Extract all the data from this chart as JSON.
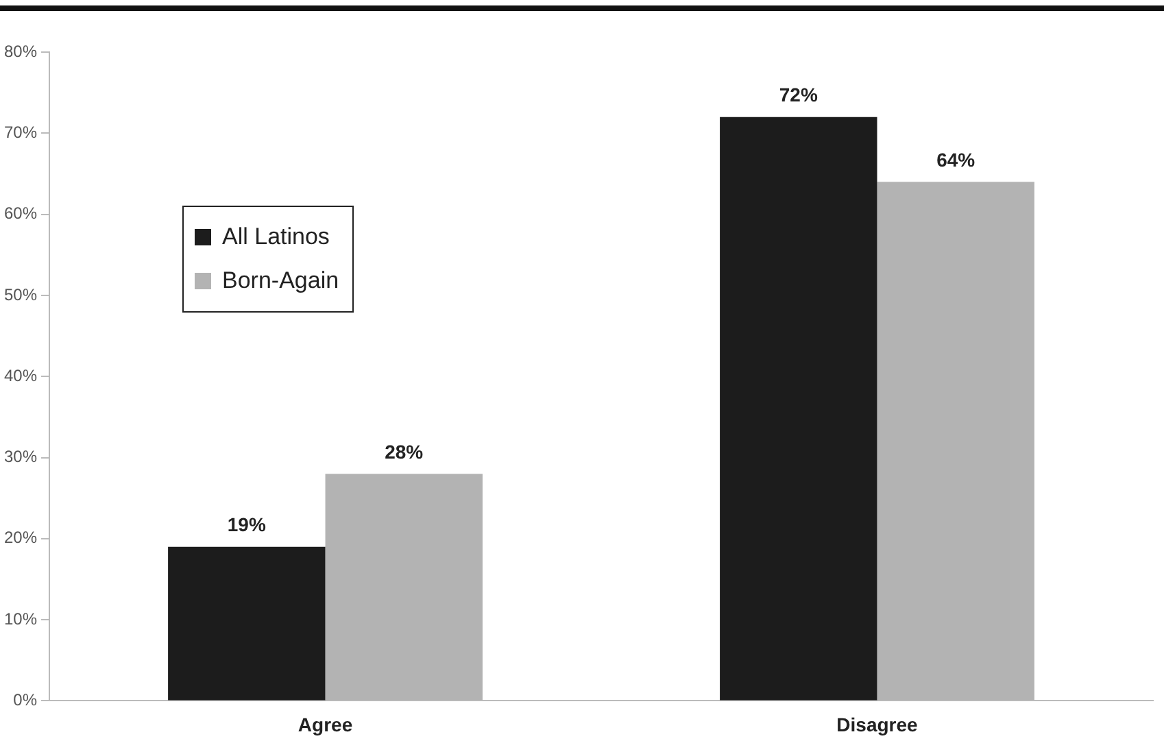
{
  "chart_data": {
    "type": "bar",
    "categories": [
      "Agree",
      "Disagree"
    ],
    "series": [
      {
        "name": "All Latinos",
        "color": "#1c1c1c",
        "values": [
          19,
          72
        ]
      },
      {
        "name": "Born-Again",
        "color": "#b3b3b3",
        "values": [
          28,
          64
        ]
      }
    ],
    "ylim": [
      0,
      80
    ],
    "yticks": [
      {
        "value": 0,
        "label": "0%"
      },
      {
        "value": 10,
        "label": "10%"
      },
      {
        "value": 20,
        "label": "20%"
      },
      {
        "value": 30,
        "label": "30%"
      },
      {
        "value": 40,
        "label": "40%"
      },
      {
        "value": 50,
        "label": "50%"
      },
      {
        "value": 60,
        "label": "60%"
      },
      {
        "value": 70,
        "label": "70%"
      },
      {
        "value": 80,
        "label": "80%"
      }
    ],
    "value_labels": [
      [
        "19%",
        "72%"
      ],
      [
        "28%",
        "64%"
      ]
    ],
    "grid": false,
    "legend": "top left"
  }
}
